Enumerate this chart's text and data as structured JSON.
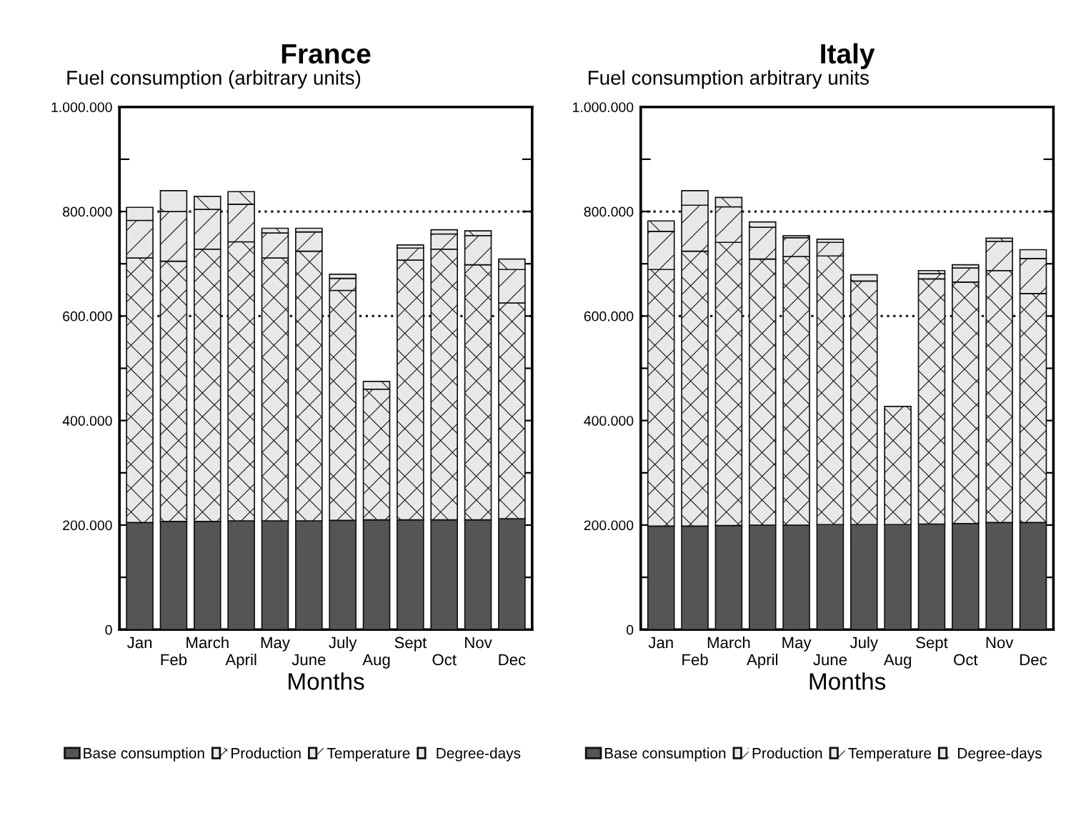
{
  "chart_data": [
    {
      "type": "bar",
      "title": "France",
      "ylabel": "Fuel consumption (arbitrary units)",
      "xlabel": "Months",
      "stacked": true,
      "legend": "bottom",
      "grid": false,
      "categories": [
        "Jan",
        "Feb",
        "March",
        "April",
        "May",
        "June",
        "July",
        "Aug",
        "Sept",
        "Oct",
        "Nov",
        "Dec"
      ],
      "series": [
        {
          "name": "Base consumption",
          "color": "#555555",
          "values": [
            205000,
            207000,
            207000,
            208000,
            208000,
            208000,
            209000,
            210000,
            210000,
            210000,
            210000,
            212000
          ]
        },
        {
          "name": "Production",
          "color": "#e8e8e8",
          "values": [
            506000,
            498000,
            521000,
            534000,
            503000,
            516000,
            440000,
            250000,
            497000,
            518000,
            488000,
            413000
          ]
        },
        {
          "name": "Temperature",
          "color": "#e8e8e8",
          "values": [
            72000,
            95000,
            76000,
            72000,
            48000,
            37000,
            23000,
            null,
            23000,
            29000,
            56000,
            64000
          ]
        },
        {
          "name": "Degree-days",
          "color": "#e8e8e8",
          "values": [
            25000,
            40000,
            25000,
            24000,
            9000,
            7000,
            8000,
            15000,
            6000,
            8000,
            9000,
            20000
          ]
        }
      ],
      "ylim": [
        0,
        1000000
      ],
      "yticks": [
        0,
        {
          "value": 100000,
          "label": null
        },
        {
          "value": 200000,
          "label": "200.000"
        },
        {
          "value": 300000,
          "label": null
        },
        {
          "value": 400000,
          "label": "400.000"
        },
        {
          "value": 500000,
          "label": null
        },
        {
          "value": 600000,
          "label": "600.000"
        },
        {
          "value": 700000,
          "label": null
        },
        {
          "value": 800000,
          "label": "800.000"
        },
        {
          "value": 900000,
          "label": null
        },
        {
          "value": 1000000,
          "label": "1.000.000"
        }
      ],
      "ref_lines": [
        {
          "axis": "y",
          "value": 800000,
          "line_style": "dotted"
        },
        {
          "axis": "y",
          "value": 600000,
          "line_style": "dotted"
        }
      ]
    },
    {
      "type": "bar",
      "title": "Italy",
      "ylabel": "Fuel consumption arbitrary units",
      "xlabel": "Months",
      "stacked": true,
      "legend": "bottom",
      "grid": false,
      "categories": [
        "Jan",
        "Feb",
        "March",
        "April",
        "May",
        "June",
        "July",
        "Aug",
        "Sept",
        "Oct",
        "Nov",
        "Dec"
      ],
      "series": [
        {
          "name": "Base consumption",
          "color": "#555555",
          "values": [
            198000,
            198000,
            199000,
            200000,
            200000,
            201000,
            201000,
            201000,
            202000,
            203000,
            205000,
            205000
          ]
        },
        {
          "name": "Production",
          "color": "#e8e8e8",
          "values": [
            491000,
            526000,
            542000,
            509000,
            514000,
            514000,
            466000,
            226000,
            469000,
            462000,
            482000,
            438000
          ]
        },
        {
          "name": "Temperature",
          "color": "#e8e8e8",
          "values": [
            73000,
            88000,
            68000,
            61000,
            36000,
            26000,
            null,
            null,
            10000,
            27000,
            56000,
            67000
          ]
        },
        {
          "name": "Degree-days",
          "color": "#e8e8e8",
          "values": [
            20000,
            28000,
            18000,
            10000,
            4000,
            6000,
            12000,
            null,
            6000,
            6000,
            6000,
            17000
          ]
        }
      ],
      "ylim": [
        0,
        1000000
      ],
      "yticks": [
        0,
        {
          "value": 100000,
          "label": null
        },
        {
          "value": 200000,
          "label": "200.000"
        },
        {
          "value": 300000,
          "label": null
        },
        {
          "value": 400000,
          "label": "400.000"
        },
        {
          "value": 500000,
          "label": null
        },
        {
          "value": 600000,
          "label": "600.000"
        },
        {
          "value": 700000,
          "label": null
        },
        {
          "value": 800000,
          "label": "800.000"
        },
        {
          "value": 900000,
          "label": null
        },
        {
          "value": 1000000,
          "label": "1.000.000"
        }
      ],
      "ref_lines": [
        {
          "axis": "y",
          "value": 800000,
          "line_style": "dotted"
        },
        {
          "axis": "y",
          "value": 600000,
          "line_style": "dotted"
        }
      ]
    }
  ]
}
